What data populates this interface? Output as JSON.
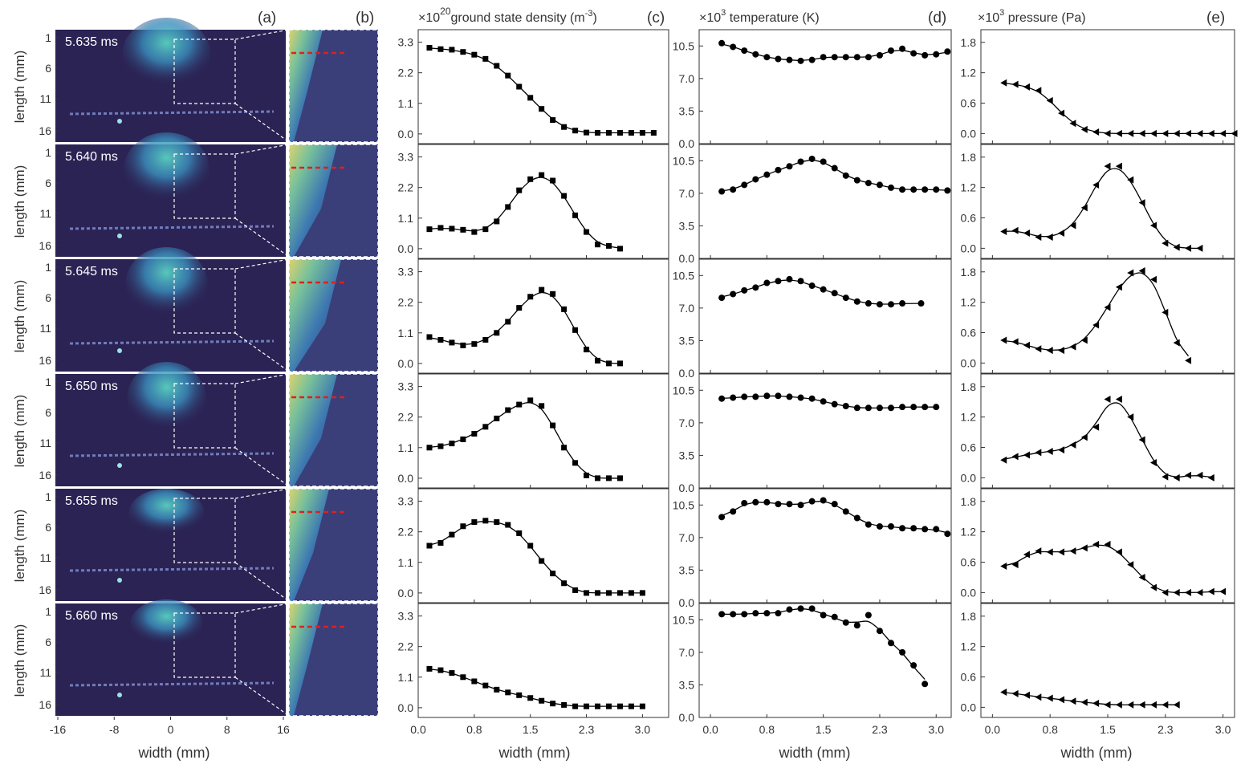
{
  "figure": {
    "panel_letters": [
      "(a)",
      "(b)",
      "(c)",
      "(d)",
      "(e)"
    ],
    "left_ylabel": "length (mm)",
    "width_label": "width (mm)",
    "times": [
      "5.635 ms",
      "5.640 ms",
      "5.645 ms",
      "5.650 ms",
      "5.655 ms",
      "5.660 ms"
    ],
    "image_y_ticks": [
      "1",
      "6",
      "11",
      "16"
    ],
    "image_x_ticks": [
      "-16",
      "-8",
      "0",
      "8",
      "16"
    ],
    "colors": {
      "image_bg": "#2b2354",
      "plume": "#3fb6b0",
      "cut_line": "#e0201b",
      "marker": "#000000"
    }
  },
  "chart_data": [
    {
      "type": "scatter",
      "panel": "(c)",
      "title_prefix": "×10",
      "title_exp": "20",
      "title": "ground state density (m",
      "title_unit_exp": "-3",
      "title_end": ")",
      "xlabel": "width (mm)",
      "marker": "square",
      "xlim": [
        0.0,
        3.35
      ],
      "ylim": [
        -0.35,
        3.75
      ],
      "xticks": [
        "0.0",
        "0.8",
        "1.5",
        "2.3",
        "3.0"
      ],
      "xtick_values": [
        0.0,
        0.75,
        1.5,
        2.25,
        3.0
      ],
      "yticks": [
        "0.0",
        "1.1",
        "2.2",
        "3.3"
      ],
      "ytick_values": [
        0.0,
        1.1,
        2.2,
        3.3
      ],
      "series": [
        {
          "x": [
            0.15,
            0.3,
            0.45,
            0.6,
            0.75,
            0.9,
            1.05,
            1.2,
            1.35,
            1.5,
            1.65,
            1.8,
            1.95,
            2.1,
            2.25,
            2.4,
            2.55,
            2.7,
            2.85,
            3.0,
            3.15
          ],
          "y": [
            3.1,
            3.05,
            3.03,
            2.95,
            2.85,
            2.7,
            2.45,
            2.1,
            1.7,
            1.3,
            0.9,
            0.5,
            0.25,
            0.12,
            0.05,
            0.04,
            0.04,
            0.04,
            0.04,
            0.04,
            0.04
          ]
        },
        {
          "x": [
            0.15,
            0.3,
            0.45,
            0.6,
            0.75,
            0.9,
            1.05,
            1.2,
            1.35,
            1.5,
            1.65,
            1.8,
            1.95,
            2.1,
            2.25,
            2.4,
            2.55,
            2.7
          ],
          "y": [
            0.7,
            0.75,
            0.72,
            0.68,
            0.6,
            0.7,
            0.98,
            1.5,
            2.1,
            2.5,
            2.65,
            2.45,
            1.9,
            1.2,
            0.6,
            0.15,
            0.1,
            0.0
          ]
        },
        {
          "x": [
            0.15,
            0.3,
            0.45,
            0.6,
            0.75,
            0.9,
            1.05,
            1.2,
            1.35,
            1.5,
            1.65,
            1.8,
            1.95,
            2.1,
            2.25,
            2.4,
            2.55,
            2.7
          ],
          "y": [
            0.95,
            0.85,
            0.75,
            0.65,
            0.7,
            0.85,
            1.1,
            1.5,
            2.0,
            2.4,
            2.65,
            2.5,
            1.95,
            1.2,
            0.5,
            0.1,
            0.0,
            0.0
          ]
        },
        {
          "x": [
            0.15,
            0.3,
            0.45,
            0.6,
            0.75,
            0.9,
            1.05,
            1.2,
            1.35,
            1.5,
            1.65,
            1.8,
            1.95,
            2.1,
            2.25,
            2.4,
            2.55,
            2.7
          ],
          "y": [
            1.1,
            1.15,
            1.25,
            1.4,
            1.6,
            1.85,
            2.15,
            2.45,
            2.65,
            2.8,
            2.6,
            1.9,
            1.1,
            0.55,
            0.1,
            0.0,
            0.0,
            0.0
          ]
        },
        {
          "x": [
            0.15,
            0.3,
            0.45,
            0.6,
            0.75,
            0.9,
            1.05,
            1.2,
            1.35,
            1.5,
            1.65,
            1.8,
            1.95,
            2.1,
            2.25,
            2.4,
            2.55,
            2.7,
            2.85,
            3.0
          ],
          "y": [
            1.7,
            1.8,
            2.1,
            2.4,
            2.55,
            2.6,
            2.55,
            2.45,
            2.15,
            1.7,
            1.15,
            0.7,
            0.35,
            0.1,
            0.0,
            0.0,
            0.0,
            0.0,
            0.0,
            0.0
          ]
        },
        {
          "x": [
            0.15,
            0.3,
            0.45,
            0.6,
            0.75,
            0.9,
            1.05,
            1.2,
            1.35,
            1.5,
            1.65,
            1.8,
            1.95,
            2.1,
            2.25,
            2.4,
            2.55,
            2.7,
            2.85,
            3.0
          ],
          "y": [
            1.4,
            1.35,
            1.25,
            1.1,
            0.95,
            0.8,
            0.65,
            0.55,
            0.45,
            0.35,
            0.25,
            0.15,
            0.1,
            0.05,
            0.05,
            0.05,
            0.05,
            0.05,
            0.05,
            0.05
          ]
        }
      ]
    },
    {
      "type": "scatter",
      "panel": "(d)",
      "title_prefix": "×10",
      "title_exp": "3",
      "title": " temperature (K)",
      "xlabel": "width (mm)",
      "marker": "circle",
      "xlim": [
        -0.15,
        3.2
      ],
      "ylim": [
        0.0,
        12.25
      ],
      "xticks": [
        "0.0",
        "0.8",
        "1.5",
        "2.3",
        "3.0"
      ],
      "xtick_values": [
        0.0,
        0.75,
        1.5,
        2.25,
        3.0
      ],
      "yticks": [
        "0.0",
        "3.5",
        "7.0",
        "10.5"
      ],
      "ytick_values": [
        0.0,
        3.5,
        7.0,
        10.5
      ],
      "series": [
        {
          "x": [
            0.15,
            0.3,
            0.45,
            0.6,
            0.75,
            0.9,
            1.05,
            1.2,
            1.35,
            1.5,
            1.65,
            1.8,
            1.95,
            2.1,
            2.25,
            2.4,
            2.55,
            2.7,
            2.85,
            3.0,
            3.15
          ],
          "y": [
            10.8,
            10.4,
            10.0,
            9.6,
            9.3,
            9.1,
            9.0,
            8.9,
            9.0,
            9.3,
            9.3,
            9.3,
            9.3,
            9.3,
            9.5,
            10.0,
            10.2,
            9.7,
            9.5,
            9.6,
            9.9
          ]
        },
        {
          "x": [
            0.15,
            0.3,
            0.45,
            0.6,
            0.75,
            0.9,
            1.05,
            1.2,
            1.35,
            1.5,
            1.65,
            1.8,
            1.95,
            2.1,
            2.25,
            2.4,
            2.55,
            2.7,
            2.85,
            3.0,
            3.15
          ],
          "y": [
            7.2,
            7.4,
            7.9,
            8.5,
            9.0,
            9.5,
            9.9,
            10.4,
            10.7,
            10.4,
            9.7,
            8.9,
            8.4,
            8.1,
            7.9,
            7.6,
            7.4,
            7.4,
            7.4,
            7.4,
            7.3
          ]
        },
        {
          "x": [
            0.15,
            0.3,
            0.45,
            0.6,
            0.75,
            0.9,
            1.05,
            1.2,
            1.35,
            1.5,
            1.65,
            1.8,
            1.95,
            2.1,
            2.25,
            2.4,
            2.55,
            2.8
          ],
          "y": [
            8.1,
            8.5,
            8.9,
            9.2,
            9.7,
            9.9,
            10.1,
            9.9,
            9.4,
            9.0,
            8.6,
            8.1,
            7.7,
            7.5,
            7.4,
            7.4,
            7.5,
            7.5
          ]
        },
        {
          "x": [
            0.15,
            0.3,
            0.45,
            0.6,
            0.75,
            0.9,
            1.05,
            1.2,
            1.35,
            1.5,
            1.65,
            1.8,
            1.95,
            2.1,
            2.25,
            2.4,
            2.55,
            2.7,
            2.85,
            3.0
          ],
          "y": [
            9.6,
            9.7,
            9.8,
            9.8,
            9.9,
            9.9,
            9.8,
            9.7,
            9.6,
            9.3,
            9.0,
            8.8,
            8.6,
            8.6,
            8.6,
            8.6,
            8.7,
            8.7,
            8.7,
            8.7
          ]
        },
        {
          "x": [
            0.15,
            0.3,
            0.45,
            0.6,
            0.75,
            0.9,
            1.05,
            1.2,
            1.35,
            1.5,
            1.65,
            1.8,
            1.95,
            2.1,
            2.25,
            2.4,
            2.55,
            2.7,
            2.85,
            3.0,
            3.15
          ],
          "y": [
            9.2,
            9.8,
            10.7,
            10.8,
            10.8,
            10.6,
            10.6,
            10.5,
            10.9,
            11.0,
            10.6,
            9.8,
            9.1,
            8.4,
            8.2,
            8.2,
            8.0,
            8.0,
            7.9,
            7.9,
            7.4
          ]
        },
        {
          "x": [
            0.15,
            0.3,
            0.45,
            0.6,
            0.75,
            0.9,
            1.05,
            1.2,
            1.35,
            1.5,
            1.65,
            1.8,
            1.95,
            2.1,
            2.25,
            2.4,
            2.55,
            2.7,
            2.85
          ],
          "y": [
            11.1,
            11.1,
            11.1,
            11.2,
            11.2,
            11.2,
            11.6,
            11.7,
            11.7,
            11.0,
            10.8,
            10.2,
            9.9,
            11.0,
            9.3,
            8.0,
            7.0,
            5.6,
            3.6
          ]
        }
      ]
    },
    {
      "type": "scatter",
      "panel": "(e)",
      "title_prefix": "×10",
      "title_exp": "3",
      "title": " pressure (Pa)",
      "xlabel": "width (mm)",
      "marker": "triangle-left",
      "xlim": [
        -0.15,
        3.15
      ],
      "ylim": [
        -0.2,
        2.05
      ],
      "xticks": [
        "0.0",
        "0.8",
        "1.5",
        "2.3",
        "3.0"
      ],
      "xtick_values": [
        0.0,
        0.75,
        1.5,
        2.25,
        3.0
      ],
      "yticks": [
        "0.0",
        "0.6",
        "1.2",
        "1.8"
      ],
      "ytick_values": [
        0.0,
        0.6,
        1.2,
        1.8
      ],
      "series": [
        {
          "x": [
            0.15,
            0.3,
            0.45,
            0.6,
            0.75,
            0.9,
            1.05,
            1.2,
            1.35,
            1.5,
            1.65,
            1.8,
            1.95,
            2.1,
            2.25,
            2.4,
            2.55,
            2.7,
            2.85,
            3.0,
            3.15
          ],
          "y": [
            1.0,
            0.97,
            0.92,
            0.85,
            0.65,
            0.4,
            0.2,
            0.08,
            0.03,
            0.0,
            0.0,
            0.0,
            0.0,
            0.0,
            0.0,
            0.0,
            0.0,
            0.0,
            0.0,
            0.0,
            0.0
          ]
        },
        {
          "x": [
            0.15,
            0.3,
            0.45,
            0.6,
            0.75,
            0.9,
            1.05,
            1.2,
            1.35,
            1.5,
            1.65,
            1.8,
            1.95,
            2.1,
            2.25,
            2.4,
            2.55,
            2.7
          ],
          "y": [
            0.33,
            0.35,
            0.3,
            0.22,
            0.22,
            0.3,
            0.45,
            0.8,
            1.25,
            1.62,
            1.62,
            1.35,
            0.9,
            0.45,
            0.1,
            0.02,
            0.0,
            0.0
          ]
        },
        {
          "x": [
            0.15,
            0.3,
            0.45,
            0.6,
            0.75,
            0.9,
            1.05,
            1.2,
            1.35,
            1.5,
            1.65,
            1.8,
            1.95,
            2.1,
            2.25,
            2.4,
            2.55
          ],
          "y": [
            0.45,
            0.42,
            0.35,
            0.28,
            0.25,
            0.25,
            0.32,
            0.45,
            0.75,
            1.1,
            1.5,
            1.78,
            1.82,
            1.65,
            1.0,
            0.4,
            0.05
          ]
        },
        {
          "x": [
            0.15,
            0.3,
            0.45,
            0.6,
            0.75,
            0.9,
            1.05,
            1.2,
            1.35,
            1.5,
            1.65,
            1.8,
            1.95,
            2.1,
            2.25,
            2.4,
            2.55,
            2.7,
            2.85
          ],
          "y": [
            0.35,
            0.42,
            0.45,
            0.5,
            0.52,
            0.55,
            0.65,
            0.8,
            1.0,
            1.55,
            1.55,
            1.2,
            0.75,
            0.3,
            0.02,
            0.0,
            0.05,
            0.05,
            0.0
          ]
        },
        {
          "x": [
            0.15,
            0.3,
            0.45,
            0.6,
            0.75,
            0.9,
            1.05,
            1.2,
            1.35,
            1.5,
            1.65,
            1.8,
            1.95,
            2.1,
            2.25,
            2.4,
            2.55,
            2.7,
            2.85,
            3.0
          ],
          "y": [
            0.52,
            0.55,
            0.75,
            0.82,
            0.8,
            0.8,
            0.82,
            0.88,
            0.95,
            0.95,
            0.8,
            0.55,
            0.3,
            0.1,
            0.0,
            0.0,
            0.0,
            0.0,
            0.02,
            0.02
          ]
        },
        {
          "x": [
            0.15,
            0.3,
            0.45,
            0.6,
            0.75,
            0.9,
            1.05,
            1.2,
            1.35,
            1.5,
            1.65,
            1.8,
            1.95,
            2.1,
            2.25,
            2.4
          ],
          "y": [
            0.3,
            0.27,
            0.24,
            0.2,
            0.18,
            0.15,
            0.12,
            0.1,
            0.08,
            0.05,
            0.05,
            0.05,
            0.05,
            0.05,
            0.05,
            0.05
          ]
        }
      ]
    }
  ]
}
